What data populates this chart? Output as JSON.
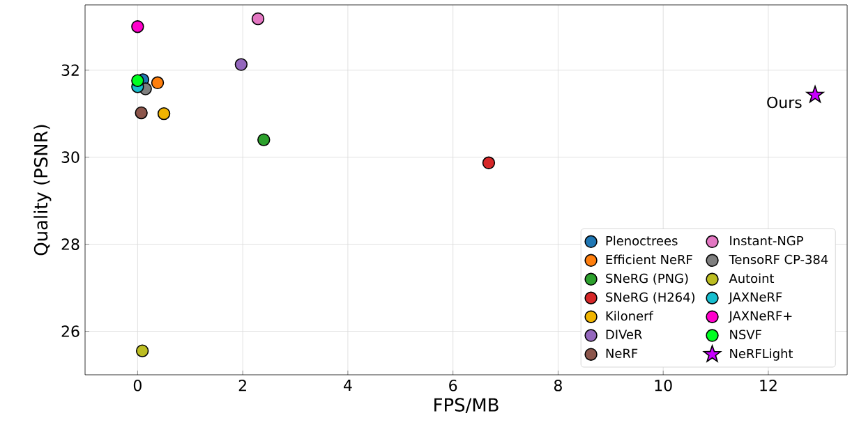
{
  "chart_data": {
    "type": "scatter",
    "xlabel": "FPS/MB",
    "ylabel": "Quality (PSNR)",
    "xlim": [
      -1,
      13.5
    ],
    "ylim": [
      25,
      33.5
    ],
    "xticks": [
      0,
      2,
      4,
      6,
      8,
      10,
      12
    ],
    "yticks": [
      26,
      28,
      30,
      32
    ],
    "grid": true,
    "legend": "bottom right",
    "marker": "circle",
    "annotations": [
      {
        "text": "Ours",
        "x": 12.89,
        "y": 31.43
      }
    ],
    "series": [
      {
        "name": "Plenoctrees",
        "color": "#1f77b4",
        "x": [
          0.1
        ],
        "values": [
          31.78
        ]
      },
      {
        "name": "Efficient NeRF",
        "color": "#ff7f0e",
        "x": [
          0.38
        ],
        "values": [
          31.71
        ]
      },
      {
        "name": "SNeRG (PNG)",
        "color": "#2ca02c",
        "x": [
          2.4
        ],
        "values": [
          30.4
        ]
      },
      {
        "name": "SNeRG (H264)",
        "color": "#d62728",
        "x": [
          6.68
        ],
        "values": [
          29.87
        ]
      },
      {
        "name": "Kilonerf",
        "color": "#f0b400",
        "x": [
          0.5
        ],
        "values": [
          31.0
        ]
      },
      {
        "name": "DIVeR",
        "color": "#9467bd",
        "x": [
          1.97
        ],
        "values": [
          32.13
        ]
      },
      {
        "name": "NeRF",
        "color": "#8c564b",
        "x": [
          0.07
        ],
        "values": [
          31.02
        ]
      },
      {
        "name": "Instant-NGP",
        "color": "#e377c2",
        "x": [
          2.29
        ],
        "values": [
          33.18
        ]
      },
      {
        "name": "TensoRF CP-384",
        "color": "#7f7f7f",
        "x": [
          0.15
        ],
        "values": [
          31.57
        ]
      },
      {
        "name": "Autoint",
        "color": "#bcbd22",
        "x": [
          0.09
        ],
        "values": [
          25.55
        ]
      },
      {
        "name": "JAXNeRF",
        "color": "#17becf",
        "x": [
          0.0
        ],
        "values": [
          31.62
        ]
      },
      {
        "name": "JAXNeRF+",
        "color": "#ff00cc",
        "x": [
          0.0
        ],
        "values": [
          33.0
        ]
      },
      {
        "name": "NSVF",
        "color": "#00ff22",
        "x": [
          0.0
        ],
        "values": [
          31.76
        ]
      },
      {
        "name": "NeRFLight",
        "color": "#c800ff",
        "marker": "star",
        "x": [
          12.89
        ],
        "values": [
          31.43
        ]
      }
    ]
  }
}
